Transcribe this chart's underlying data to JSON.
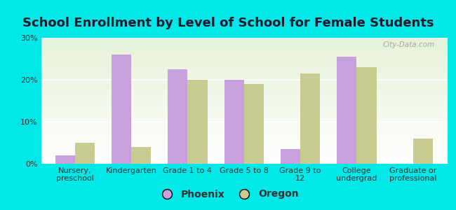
{
  "title": "School Enrollment by Level of School for Female Students",
  "categories": [
    "Nursery,\npreschool",
    "Kindergarten",
    "Grade 1 to 4",
    "Grade 5 to 8",
    "Grade 9 to\n12",
    "College\nundergrad",
    "Graduate or\nprofessional"
  ],
  "phoenix_values": [
    2.0,
    26.0,
    22.5,
    20.0,
    3.5,
    25.5,
    0.0
  ],
  "oregon_values": [
    5.0,
    4.0,
    20.0,
    19.0,
    21.5,
    23.0,
    6.0
  ],
  "phoenix_color": "#c8a0dc",
  "oregon_color": "#c8cc90",
  "background_color": "#00e8e8",
  "ylim": [
    0,
    30
  ],
  "yticks": [
    0,
    10,
    20,
    30
  ],
  "yticklabels": [
    "0%",
    "10%",
    "20%",
    "30%"
  ],
  "legend_labels": [
    "Phoenix",
    "Oregon"
  ],
  "bar_width": 0.35,
  "title_fontsize": 13,
  "tick_fontsize": 8,
  "legend_fontsize": 10,
  "watermark": "City-Data.com",
  "title_color": "#1a1a2e"
}
